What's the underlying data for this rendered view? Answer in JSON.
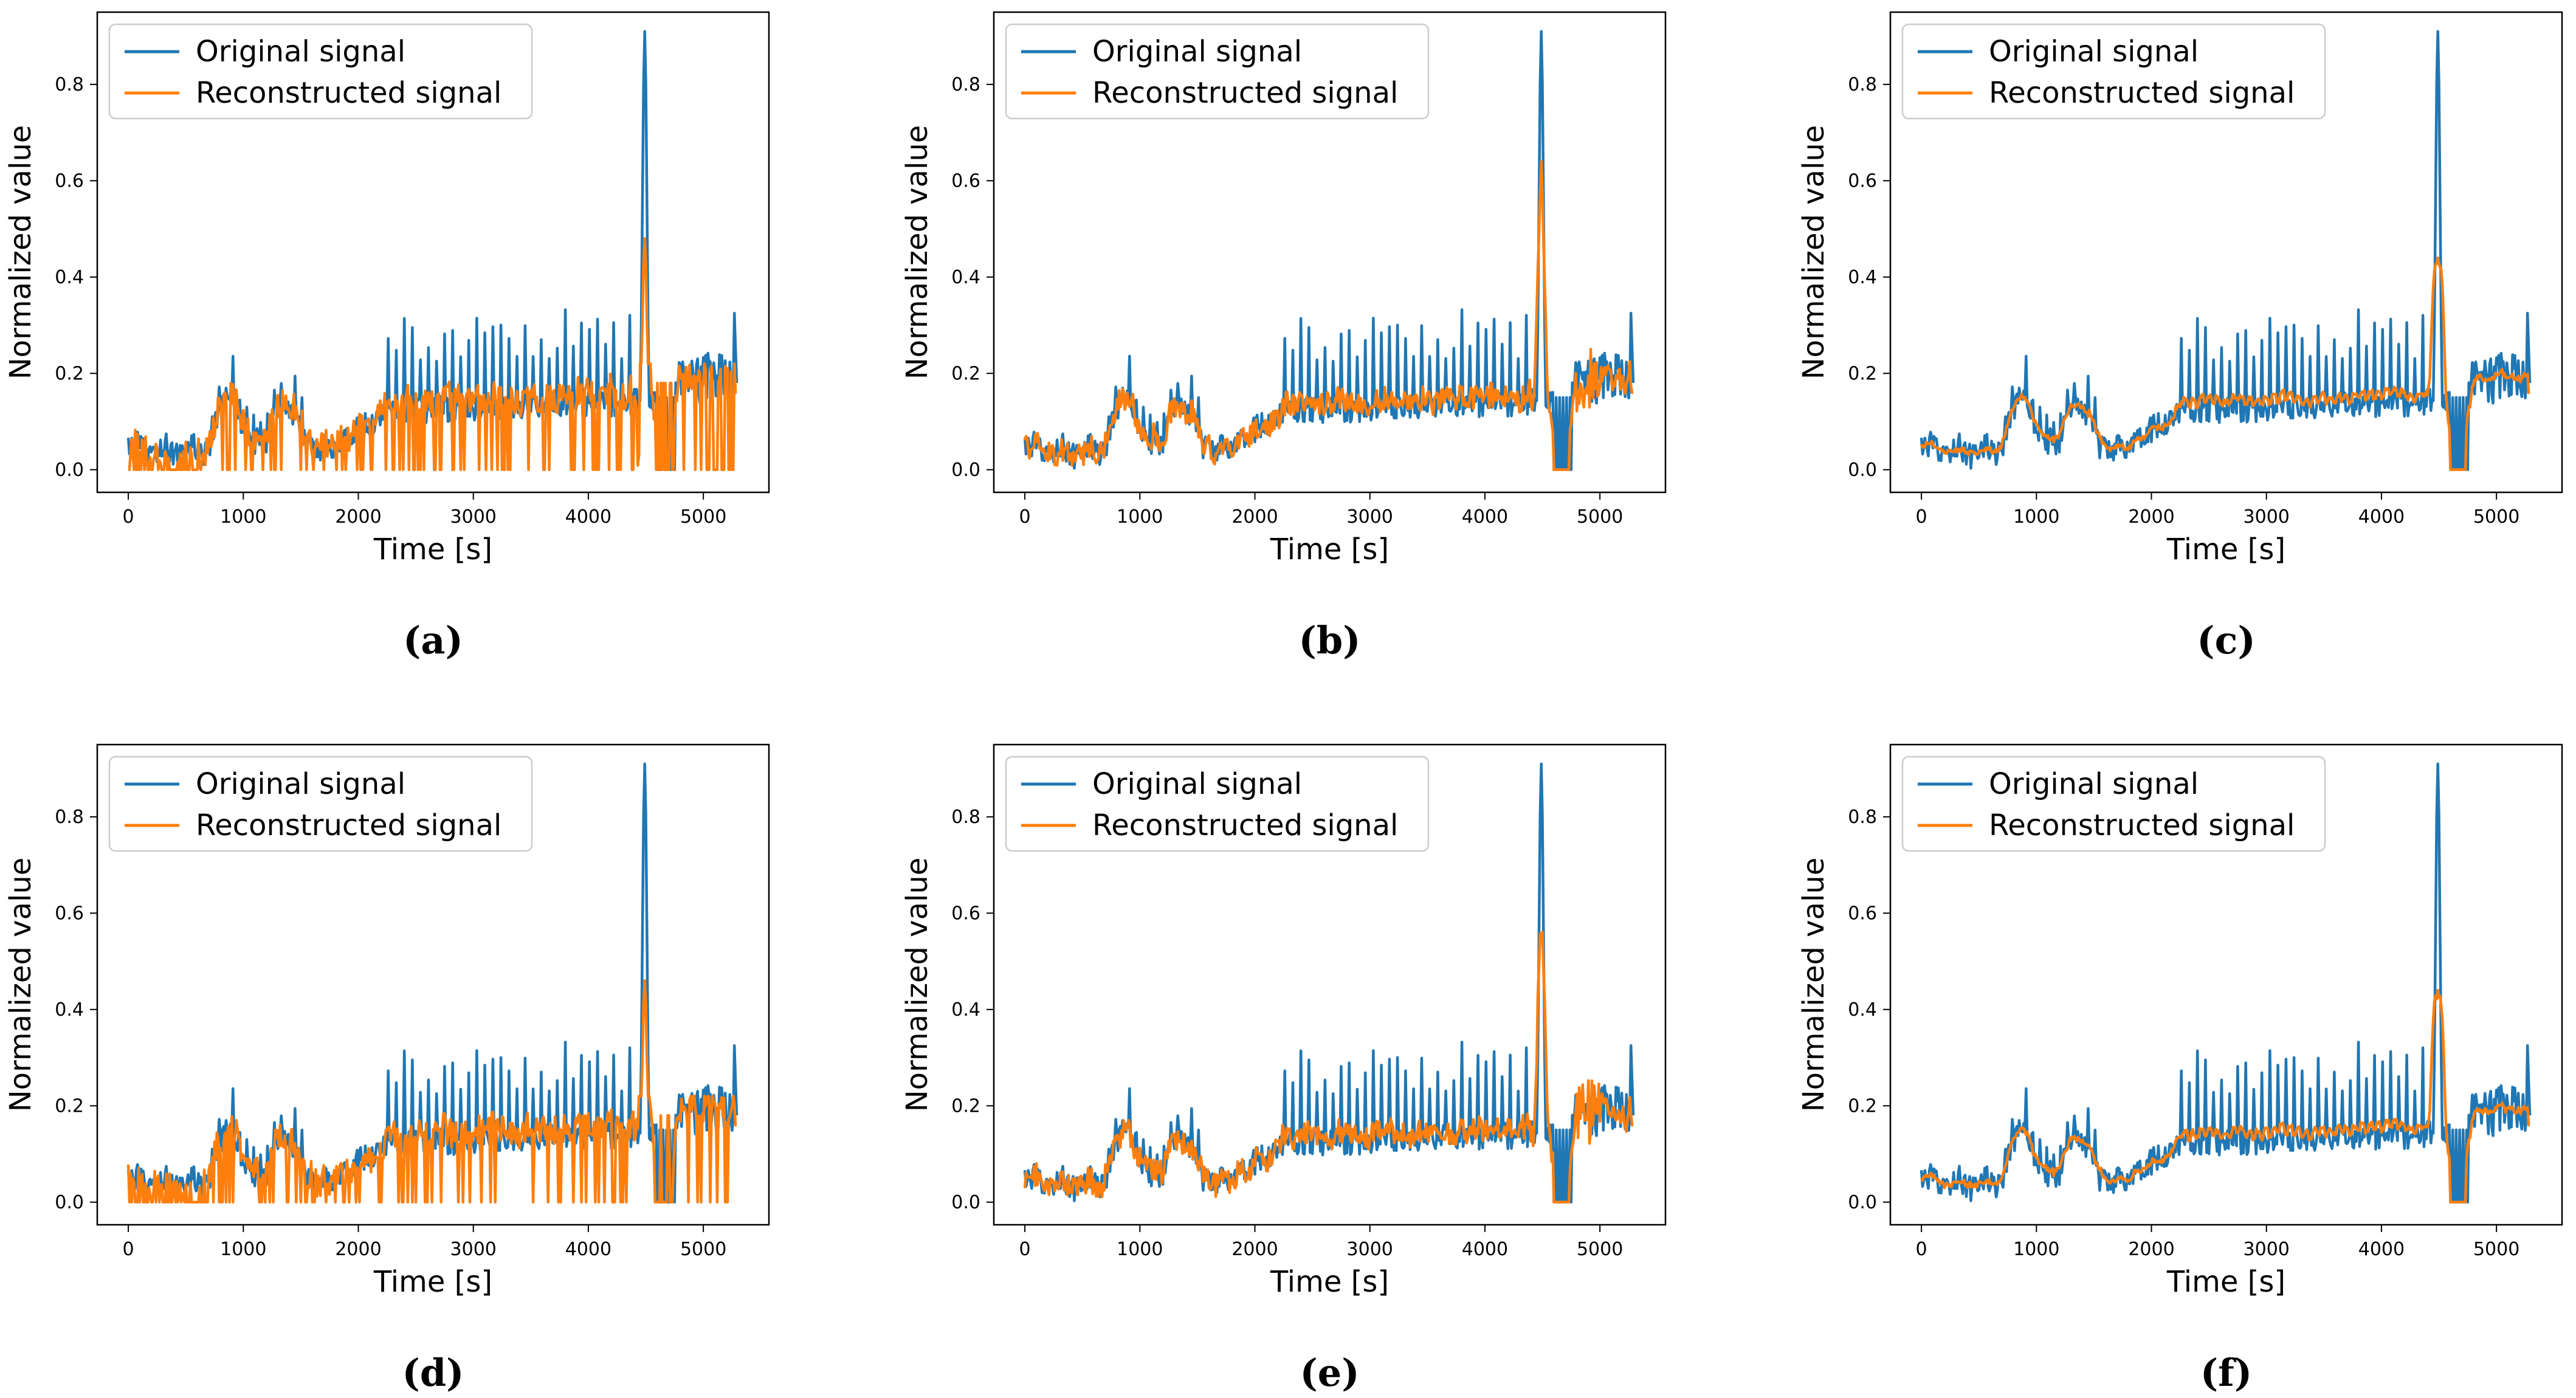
{
  "colors": {
    "original": "#1f77b4",
    "reconstructed": "#ff7f0e"
  },
  "chart_data": [
    {
      "type": "line",
      "caption": "(a)",
      "panel": "a",
      "style": "binary",
      "xlabel": "Time [s]",
      "ylabel": "Normalized value",
      "xlim": [
        -270,
        5570
      ],
      "ylim": [
        -0.047,
        0.95
      ],
      "xticks": [
        0,
        1000,
        2000,
        3000,
        4000,
        5000
      ],
      "xtick_labels": [
        "0",
        "1000",
        "2000",
        "3000",
        "4000",
        "5000"
      ],
      "yticks": [
        0.0,
        0.2,
        0.4,
        0.6,
        0.8
      ],
      "ytick_labels": [
        "0.0",
        "0.2",
        "0.4",
        "0.6",
        "0.8"
      ],
      "legend": {
        "position": "upper-left",
        "entries": [
          "Original signal",
          "Reconstructed signal"
        ]
      },
      "series": [
        {
          "name": "Original signal",
          "x_start": 0,
          "x_end": 5300,
          "points": 530
        },
        {
          "name": "Reconstructed signal",
          "x_start": 0,
          "x_end": 5300,
          "points": 530,
          "peak_value": 0.48
        }
      ]
    },
    {
      "type": "line",
      "caption": "(b)",
      "panel": "b",
      "style": "noisy",
      "xlabel": "Time [s]",
      "ylabel": "Normalized value",
      "xlim": [
        -270,
        5570
      ],
      "ylim": [
        -0.047,
        0.95
      ],
      "xticks": [
        0,
        1000,
        2000,
        3000,
        4000,
        5000
      ],
      "xtick_labels": [
        "0",
        "1000",
        "2000",
        "3000",
        "4000",
        "5000"
      ],
      "yticks": [
        0.0,
        0.2,
        0.4,
        0.6,
        0.8
      ],
      "ytick_labels": [
        "0.0",
        "0.2",
        "0.4",
        "0.6",
        "0.8"
      ],
      "legend": {
        "position": "upper-left",
        "entries": [
          "Original signal",
          "Reconstructed signal"
        ]
      },
      "series": [
        {
          "name": "Original signal",
          "x_start": 0,
          "x_end": 5300,
          "points": 530
        },
        {
          "name": "Reconstructed signal",
          "x_start": 0,
          "x_end": 5300,
          "points": 530,
          "peak_value": 0.64
        }
      ]
    },
    {
      "type": "line",
      "caption": "(c)",
      "panel": "c",
      "style": "smooth",
      "xlabel": "Time [s]",
      "ylabel": "Normalized value",
      "xlim": [
        -270,
        5570
      ],
      "ylim": [
        -0.047,
        0.95
      ],
      "xticks": [
        0,
        1000,
        2000,
        3000,
        4000,
        5000
      ],
      "xtick_labels": [
        "0",
        "1000",
        "2000",
        "3000",
        "4000",
        "5000"
      ],
      "yticks": [
        0.0,
        0.2,
        0.4,
        0.6,
        0.8
      ],
      "ytick_labels": [
        "0.0",
        "0.2",
        "0.4",
        "0.6",
        "0.8"
      ],
      "legend": {
        "position": "upper-left",
        "entries": [
          "Original signal",
          "Reconstructed signal"
        ]
      },
      "series": [
        {
          "name": "Original signal",
          "x_start": 0,
          "x_end": 5300,
          "points": 530
        },
        {
          "name": "Reconstructed signal",
          "x_start": 0,
          "x_end": 5300,
          "points": 530,
          "peak_value": 0.44
        }
      ]
    },
    {
      "type": "line",
      "caption": "(d)",
      "panel": "d",
      "style": "binary",
      "xlabel": "Time [s]",
      "ylabel": "Normalized value",
      "xlim": [
        -270,
        5570
      ],
      "ylim": [
        -0.047,
        0.95
      ],
      "xticks": [
        0,
        1000,
        2000,
        3000,
        4000,
        5000
      ],
      "xtick_labels": [
        "0",
        "1000",
        "2000",
        "3000",
        "4000",
        "5000"
      ],
      "yticks": [
        0.0,
        0.2,
        0.4,
        0.6,
        0.8
      ],
      "ytick_labels": [
        "0.0",
        "0.2",
        "0.4",
        "0.6",
        "0.8"
      ],
      "legend": {
        "position": "upper-left",
        "entries": [
          "Original signal",
          "Reconstructed signal"
        ]
      },
      "series": [
        {
          "name": "Original signal",
          "x_start": 0,
          "x_end": 5300,
          "points": 530
        },
        {
          "name": "Reconstructed signal",
          "x_start": 0,
          "x_end": 5300,
          "points": 530,
          "peak_value": 0.46
        }
      ]
    },
    {
      "type": "line",
      "caption": "(e)",
      "panel": "e",
      "style": "noisy",
      "xlabel": "Time [s]",
      "ylabel": "Normalized value",
      "xlim": [
        -270,
        5570
      ],
      "ylim": [
        -0.047,
        0.95
      ],
      "xticks": [
        0,
        1000,
        2000,
        3000,
        4000,
        5000
      ],
      "xtick_labels": [
        "0",
        "1000",
        "2000",
        "3000",
        "4000",
        "5000"
      ],
      "yticks": [
        0.0,
        0.2,
        0.4,
        0.6,
        0.8
      ],
      "ytick_labels": [
        "0.0",
        "0.2",
        "0.4",
        "0.6",
        "0.8"
      ],
      "legend": {
        "position": "upper-left",
        "entries": [
          "Original signal",
          "Reconstructed signal"
        ]
      },
      "series": [
        {
          "name": "Original signal",
          "x_start": 0,
          "x_end": 5300,
          "points": 530
        },
        {
          "name": "Reconstructed signal",
          "x_start": 0,
          "x_end": 5300,
          "points": 530,
          "peak_value": 0.47
        }
      ]
    },
    {
      "type": "line",
      "caption": "(f)",
      "panel": "f",
      "style": "smooth",
      "xlabel": "Time [s]",
      "ylabel": "Normalized value",
      "xlim": [
        -270,
        5570
      ],
      "ylim": [
        -0.047,
        0.95
      ],
      "xticks": [
        0,
        1000,
        2000,
        3000,
        4000,
        5000
      ],
      "xtick_labels": [
        "0",
        "1000",
        "2000",
        "3000",
        "4000",
        "5000"
      ],
      "yticks": [
        0.0,
        0.2,
        0.4,
        0.6,
        0.8
      ],
      "ytick_labels": [
        "0.0",
        "0.2",
        "0.4",
        "0.6",
        "0.8"
      ],
      "legend": {
        "position": "upper-left",
        "entries": [
          "Original signal",
          "Reconstructed signal"
        ]
      },
      "series": [
        {
          "name": "Original signal",
          "x_start": 0,
          "x_end": 5300,
          "points": 530
        },
        {
          "name": "Reconstructed signal",
          "x_start": 0,
          "x_end": 5300,
          "points": 530,
          "peak_value": 0.44
        }
      ]
    }
  ]
}
